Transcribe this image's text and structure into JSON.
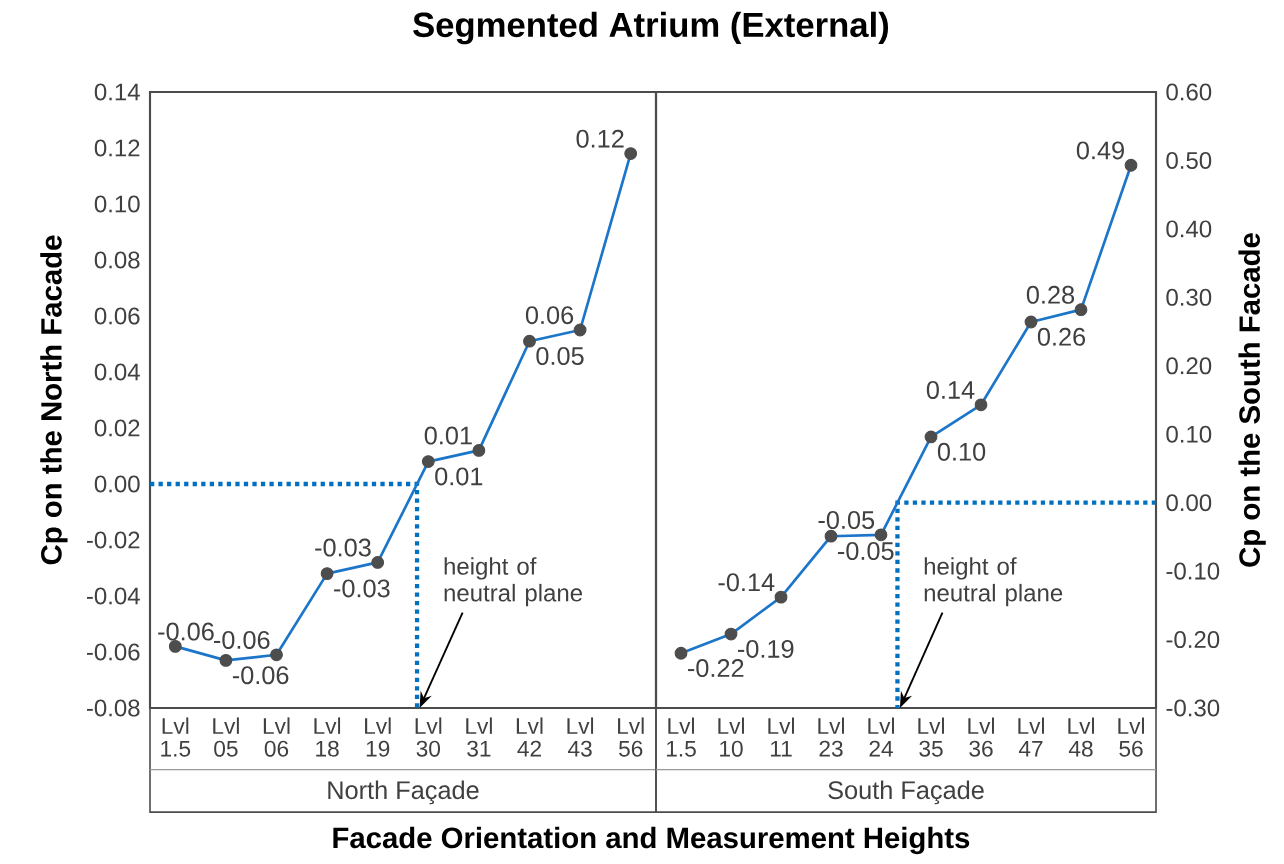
{
  "chart_data": [
    {
      "type": "line",
      "title": "Segmented Atrium (External)",
      "xlabel": "North Façade",
      "ylabel": "Cp on the North Facade",
      "categories": [
        "Lvl 1.5",
        "Lvl 05",
        "Lvl 06",
        "Lvl 18",
        "Lvl 19",
        "Lvl 30",
        "Lvl 31",
        "Lvl 42",
        "Lvl 43",
        "Lvl 56"
      ],
      "series": [
        {
          "color": "#1b75c9",
          "colors": [
            "#4d4d4d",
            "#4d4d4d",
            "#4d4d4d",
            "#4d4d4d",
            "#4d4d4d",
            "#4d4d4d",
            "#4d4d4d",
            "#4d4d4d",
            "#4d4d4d",
            "#4d4d4d"
          ],
          "values": [
            -0.058,
            -0.063,
            -0.061,
            -0.032,
            -0.028,
            0.008,
            0.012,
            0.051,
            0.055,
            0.118
          ],
          "value_labels": [
            "-0.06",
            "-0.06",
            "-0.06",
            "-0.03",
            "-0.03",
            "0.01",
            "0.01",
            "0.05",
            "0.06",
            "0.12"
          ]
        }
      ],
      "ylim": [
        -0.08,
        0.14
      ],
      "yticks": [
        {
          "value": -0.08,
          "label": "-0.08"
        },
        {
          "value": -0.06,
          "label": "-0.06"
        },
        {
          "value": -0.04,
          "label": "-0.04"
        },
        {
          "value": -0.02,
          "label": "-0.02"
        },
        {
          "value": 0,
          "label": "0.00"
        },
        {
          "value": 0.02,
          "label": "0.02"
        },
        {
          "value": 0.04,
          "label": "0.04"
        },
        {
          "value": 0.06,
          "label": "0.06"
        },
        {
          "value": 0.08,
          "label": "0.08"
        },
        {
          "value": 0.1,
          "label": "0.10"
        },
        {
          "value": 0.12,
          "label": "0.12"
        },
        {
          "value": 0.14,
          "label": "0.14"
        }
      ],
      "ref_lines": [
        {
          "axis": "y",
          "value": 0,
          "label": "height of neutral plane",
          "color": "#0070c0",
          "line_style": "dotted"
        }
      ],
      "annotations": [
        "Facade Orientation and Measurement Heights"
      ],
      "marker": "circle",
      "line_style": "solid"
    },
    {
      "type": "line",
      "xlabel": "South Façade",
      "y2label": "Cp on the South Facade",
      "categories": [
        "Lvl 1.5",
        "Lvl 10",
        "Lvl 11",
        "Lvl 23",
        "Lvl 24",
        "Lvl 35",
        "Lvl 36",
        "Lvl 47",
        "Lvl 48",
        "Lvl 56"
      ],
      "series": [
        {
          "axis": "y2",
          "color": "#1b75c9",
          "colors": [
            "#4d4d4d",
            "#4d4d4d",
            "#4d4d4d",
            "#4d4d4d",
            "#4d4d4d",
            "#4d4d4d",
            "#4d4d4d",
            "#4d4d4d",
            "#4d4d4d",
            "#4d4d4d"
          ],
          "values": [
            -0.22,
            -0.192,
            -0.138,
            -0.049,
            -0.047,
            0.096,
            0.143,
            0.264,
            0.282,
            0.493
          ],
          "value_labels": [
            "-0.22",
            "-0.19",
            "-0.14",
            "-0.05",
            "-0.05",
            "0.10",
            "0.14",
            "0.26",
            "0.28",
            "0.49"
          ]
        }
      ],
      "y2lim": [
        -0.3,
        0.6
      ],
      "y2ticks": [
        {
          "value": -0.3,
          "label": "-0.30"
        },
        {
          "value": -0.2,
          "label": "-0.20"
        },
        {
          "value": -0.1,
          "label": "-0.10"
        },
        {
          "value": 0,
          "label": "0.00"
        },
        {
          "value": 0.1,
          "label": "0.10"
        },
        {
          "value": 0.2,
          "label": "0.20"
        },
        {
          "value": 0.3,
          "label": "0.30"
        },
        {
          "value": 0.4,
          "label": "0.40"
        },
        {
          "value": 0.5,
          "label": "0.50"
        },
        {
          "value": 0.6,
          "label": "0.60"
        }
      ],
      "ref_lines": [
        {
          "axis": "y2",
          "value": 0,
          "label": "height of neutral plane",
          "color": "#0070c0",
          "line_style": "dotted"
        }
      ],
      "marker": "circle",
      "line_style": "solid"
    }
  ]
}
